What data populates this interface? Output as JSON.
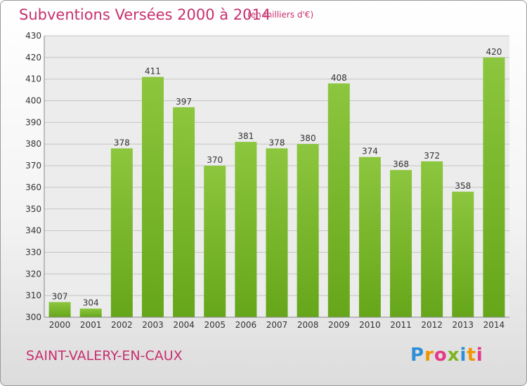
{
  "header": {
    "title": "Subventions Versées 2000 à 2014",
    "subtitle": "(en milliers d'€)"
  },
  "footer": {
    "place": "SAINT-VALERY-EN-CAUX",
    "logo_letters": [
      "P",
      "r",
      "o",
      "x",
      "i",
      "t",
      "i"
    ],
    "logo_colors": [
      "#2e8fd6",
      "#f29400",
      "#e63888",
      "#7ab51d",
      "#2e8fd6",
      "#f29400",
      "#e63888"
    ]
  },
  "chart_data": {
    "type": "bar",
    "categories": [
      "2000",
      "2001",
      "2002",
      "2003",
      "2004",
      "2005",
      "2006",
      "2007",
      "2008",
      "2009",
      "2010",
      "2011",
      "2012",
      "2013",
      "2014"
    ],
    "values": [
      307,
      304,
      378,
      411,
      397,
      370,
      381,
      378,
      380,
      408,
      374,
      368,
      372,
      358,
      420
    ],
    "ylim": [
      300,
      430
    ],
    "yticks": [
      300,
      310,
      320,
      330,
      340,
      350,
      360,
      370,
      380,
      390,
      400,
      410,
      420,
      430
    ],
    "grid": true,
    "bar_color": "#8cc63e",
    "bar_color_dark": "#66a61a",
    "title": "Subventions Versées 2000 à 2014",
    "xlabel": "",
    "ylabel": ""
  }
}
